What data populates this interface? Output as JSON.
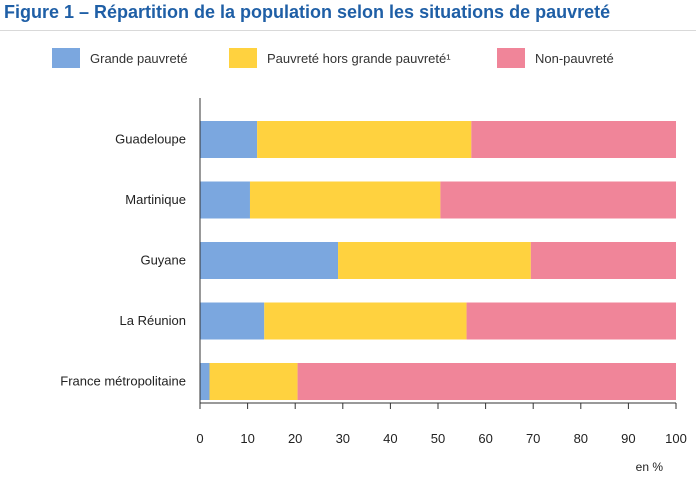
{
  "figure": {
    "title": "Figure 1 – Répartition de la population selon les situations de pauvreté"
  },
  "chart_data": {
    "type": "bar",
    "orientation": "horizontal",
    "stacked": true,
    "categories": [
      "Guadeloupe",
      "Martinique",
      "Guyane",
      "La Réunion",
      "France métropolitaine"
    ],
    "series": [
      {
        "name": "Grande pauvreté",
        "color": "#7ba7df",
        "values": [
          12,
          10.5,
          29,
          13.5,
          2
        ]
      },
      {
        "name": "Pauvreté hors grande pauvreté¹",
        "color": "#ffd23f",
        "values": [
          45,
          40,
          40.5,
          42.5,
          18.5
        ]
      },
      {
        "name": "Non-pauvreté",
        "color": "#f08599",
        "values": [
          43,
          49.5,
          30.5,
          44,
          79.5
        ]
      }
    ],
    "xlim": [
      0,
      100
    ],
    "xticks": [
      "0",
      "10",
      "20",
      "30",
      "40",
      "50",
      "60",
      "70",
      "80",
      "90",
      "100"
    ],
    "unit_label": "en %",
    "legend_position": "top",
    "grid": false
  }
}
